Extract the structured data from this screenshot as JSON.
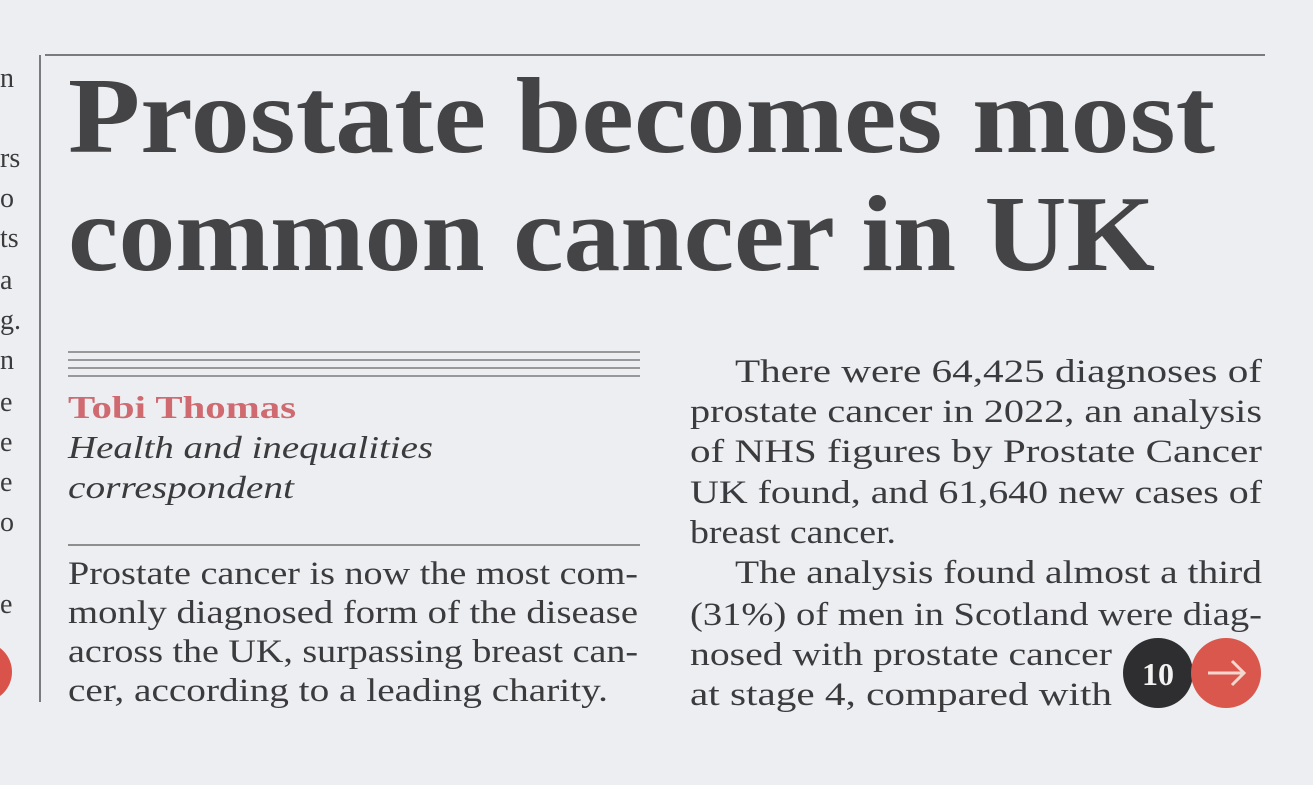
{
  "margin_fragments": [
    "n",
    "rs",
    "o",
    "ts",
    "a",
    "g.",
    "n",
    "e",
    "e",
    "e",
    "o",
    "e"
  ],
  "headline": {
    "lines": [
      "Prostate becomes most",
      "common cancer in UK"
    ]
  },
  "byline": {
    "name": "Tobi Thomas",
    "role_lines": [
      "Health and inequalities",
      "correspondent"
    ]
  },
  "standfirst": {
    "lines": [
      "Prostate cancer is now the most com-",
      "monly diagnosed form of the disease",
      "across the UK, surpassing breast can-",
      "cer, according to a leading charity."
    ]
  },
  "body": {
    "paragraphs": [
      {
        "lines": [
          "There were 64,425 diagnoses of",
          "prostate cancer in 2022, an analysis",
          "of NHS figures by Prostate Cancer",
          "UK found, and 61,640 new cases of",
          "breast cancer."
        ]
      },
      {
        "lines": [
          "The analysis found almost a third",
          "(31%) of men in Scotland were diag-",
          "nosed with prostate cancer",
          "at stage 4, compared with"
        ]
      }
    ]
  },
  "page_badge": {
    "number": "10"
  }
}
